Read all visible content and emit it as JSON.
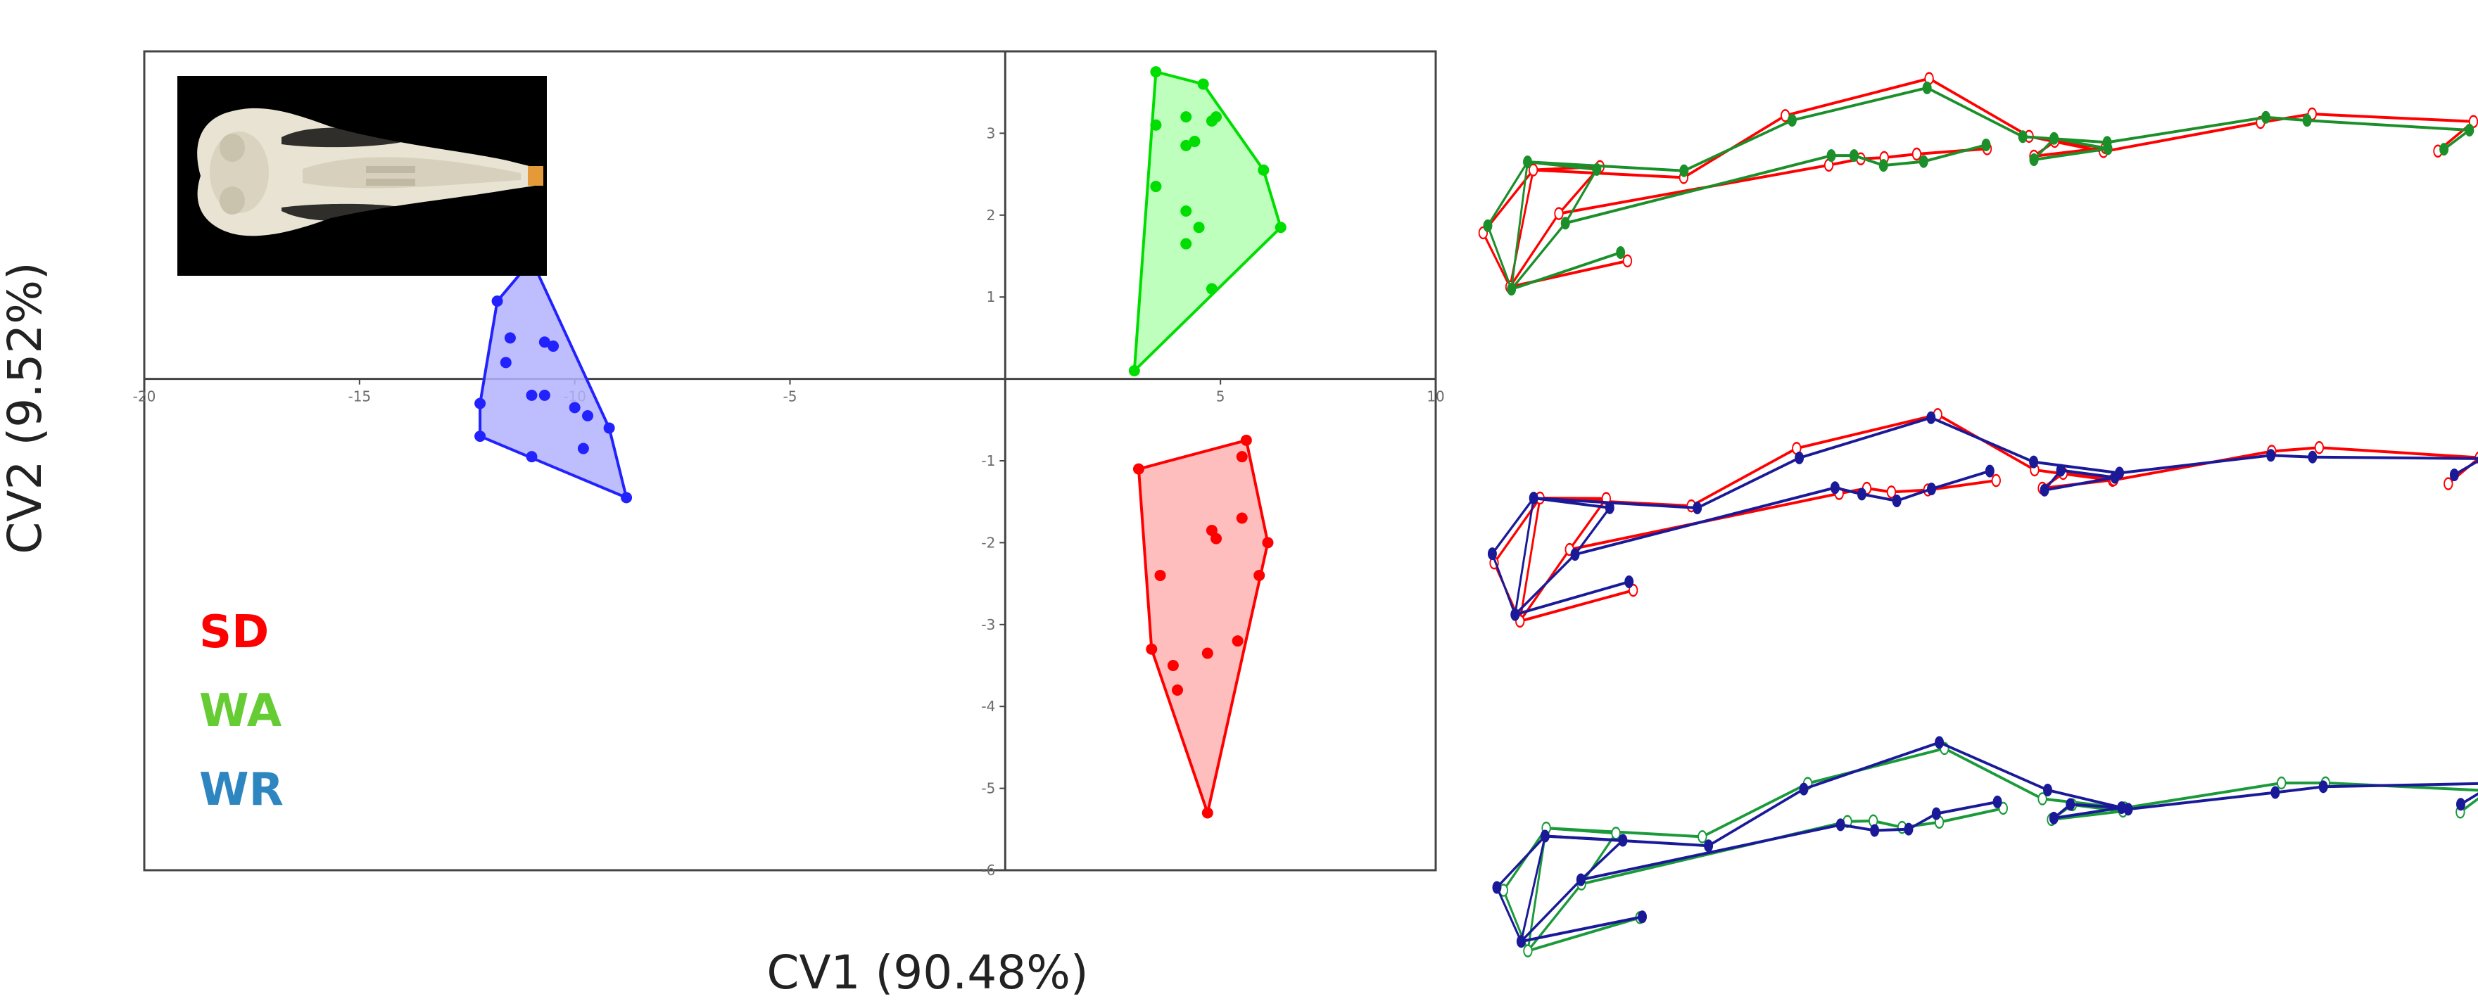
{
  "chart_data": [
    {
      "type": "scatter",
      "title": "",
      "xlabel": "CV1 (90.48%)",
      "ylabel": "CV2 (9.52%)",
      "xlim": [
        -20,
        10
      ],
      "ylim": [
        -6,
        4
      ],
      "x_ticks": [
        "-20",
        "-15",
        "-10",
        "-5",
        "5",
        "10"
      ],
      "y_ticks": [
        "-6",
        "-5",
        "-4",
        "-3",
        "-2",
        "-1",
        "1",
        "2",
        "3"
      ],
      "grid": false,
      "hull": "convex hull around each group",
      "legend_position": "bottom-left",
      "series": [
        {
          "name": "SD",
          "color": "#ff0000",
          "fill": "#ffb3b3",
          "points": [
            [
              3.1,
              -1.1
            ],
            [
              5.6,
              -0.75
            ],
            [
              5.5,
              -0.95
            ],
            [
              5.5,
              -1.7
            ],
            [
              4.8,
              -1.85
            ],
            [
              4.9,
              -1.95
            ],
            [
              6.1,
              -2.0
            ],
            [
              5.9,
              -2.4
            ],
            [
              3.6,
              -2.4
            ],
            [
              3.4,
              -3.3
            ],
            [
              3.9,
              -3.5
            ],
            [
              4.7,
              -3.35
            ],
            [
              5.4,
              -3.2
            ],
            [
              4.0,
              -3.8
            ],
            [
              4.7,
              -5.3
            ]
          ]
        },
        {
          "name": "WA",
          "color": "#00dd00",
          "fill": "#b3ffb3",
          "points": [
            [
              3.5,
              3.75
            ],
            [
              4.6,
              3.6
            ],
            [
              3.5,
              3.1
            ],
            [
              4.2,
              3.2
            ],
            [
              4.9,
              3.2
            ],
            [
              4.8,
              3.15
            ],
            [
              4.4,
              2.9
            ],
            [
              4.2,
              2.85
            ],
            [
              3.5,
              2.35
            ],
            [
              6.0,
              2.55
            ],
            [
              4.2,
              2.05
            ],
            [
              4.5,
              1.85
            ],
            [
              4.2,
              1.65
            ],
            [
              6.4,
              1.85
            ],
            [
              4.8,
              1.1
            ],
            [
              3.0,
              0.1
            ]
          ]
        },
        {
          "name": "WR",
          "color": "#2222ff",
          "fill": "#b3b3ff",
          "points": [
            [
              -11.0,
              1.45
            ],
            [
              -11.8,
              0.95
            ],
            [
              -11.5,
              0.5
            ],
            [
              -10.7,
              0.45
            ],
            [
              -10.5,
              0.4
            ],
            [
              -11.6,
              0.2
            ],
            [
              -11.0,
              -0.2
            ],
            [
              -10.7,
              -0.2
            ],
            [
              -10.0,
              -0.35
            ],
            [
              -9.7,
              -0.45
            ],
            [
              -12.2,
              -0.3
            ],
            [
              -9.2,
              -0.6
            ],
            [
              -9.8,
              -0.85
            ],
            [
              -12.2,
              -0.7
            ],
            [
              -11.0,
              -0.95
            ],
            [
              -8.8,
              -1.45
            ]
          ]
        }
      ]
    }
  ],
  "legend": [
    {
      "label": "SD",
      "color": "#ff0000"
    },
    {
      "label": "WA",
      "color": "#66cc33"
    },
    {
      "label": "WR",
      "color": "#2e86c1"
    }
  ],
  "wireframes": {
    "landmarks": 20,
    "comparisons": [
      {
        "reference": "SD",
        "reference_color": "#ff0000",
        "target": "WA",
        "target_color": "#1a8f2a",
        "reference_marker": "open-circle",
        "target_marker": "filled-circle"
      },
      {
        "reference": "SD",
        "reference_color": "#ff0000",
        "target": "WR",
        "target_color": "#1a1a99",
        "reference_marker": "open-circle",
        "target_marker": "filled-circle"
      },
      {
        "reference": "WA",
        "reference_color": "#1a9a3a",
        "target": "WR",
        "target_color": "#1a1a99",
        "reference_marker": "open-circle",
        "target_marker": "filled-circle"
      }
    ]
  },
  "inset": {
    "image": "skull-photo"
  }
}
